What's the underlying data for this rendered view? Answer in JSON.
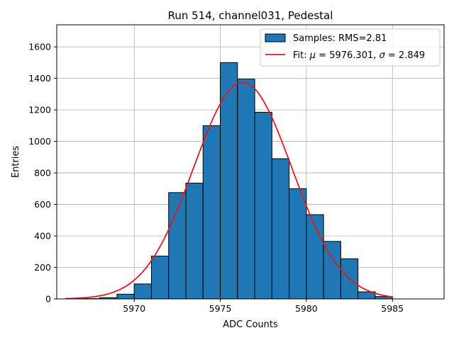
{
  "chart_data": {
    "type": "bar",
    "title": "Run 514, channel031, Pedestal",
    "xlabel": "ADC Counts",
    "ylabel": "Entries",
    "xlim": [
      5965.5,
      5988.0
    ],
    "ylim": [
      0,
      1740
    ],
    "xticks": [
      5970,
      5975,
      5980,
      5985
    ],
    "yticks": [
      0,
      200,
      400,
      600,
      800,
      1000,
      1200,
      1400,
      1600
    ],
    "grid": true,
    "legend_position": "upper-right",
    "bar_color": "#1f77b4",
    "fit_color": "#e31a1c",
    "histogram": {
      "name": "Samples: RMS=2.81",
      "bin_edges": [
        5966,
        5967,
        5968,
        5969,
        5970,
        5971,
        5972,
        5973,
        5974,
        5975,
        5976,
        5977,
        5978,
        5979,
        5980,
        5981,
        5982,
        5983,
        5984,
        5985
      ],
      "counts": [
        1,
        2,
        8,
        30,
        95,
        272,
        675,
        735,
        1100,
        1500,
        1395,
        1185,
        890,
        700,
        535,
        365,
        255,
        45,
        15
      ]
    },
    "fit": {
      "name_prefix": "Fit: ",
      "mu_symbol": "μ",
      "mu_value": " = 5976.301, ",
      "sigma_symbol": "σ",
      "sigma_value": " = 2.849",
      "mu": 5976.301,
      "sigma": 2.849,
      "amplitude": 1375,
      "x_range": [
        5966,
        5985
      ]
    }
  }
}
